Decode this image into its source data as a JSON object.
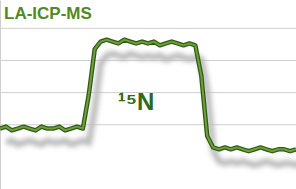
{
  "chart_data": {
    "type": "line",
    "title": "LA-ICP-MS",
    "annotation": "¹⁵N",
    "x": [
      0,
      2,
      4,
      6,
      8,
      10,
      12,
      14,
      16,
      18,
      20,
      22,
      24,
      26,
      28,
      30,
      32,
      34,
      36,
      38,
      40,
      42,
      44,
      46,
      48,
      50,
      52,
      54,
      56,
      58,
      60,
      62,
      64,
      66,
      68,
      70,
      72,
      74,
      76,
      78,
      80,
      82,
      84,
      86,
      88,
      90,
      92,
      94,
      96,
      98,
      100
    ],
    "values": [
      32,
      33,
      31,
      32,
      33,
      32,
      31,
      33,
      32,
      32,
      33,
      31,
      32,
      33,
      32,
      50,
      74,
      78,
      79,
      78,
      77,
      79,
      78,
      77,
      78,
      77,
      78,
      76,
      77,
      78,
      77,
      76,
      77,
      76,
      60,
      28,
      22,
      21,
      22,
      21,
      22,
      21,
      20,
      21,
      22,
      21,
      20,
      21,
      21,
      20,
      21
    ],
    "color": "#6f9e3a",
    "xlim": [
      0,
      100
    ],
    "ylim": [
      0,
      100
    ],
    "yticks": [
      34,
      51,
      68,
      85
    ],
    "grid": true,
    "tick_labels": false
  }
}
